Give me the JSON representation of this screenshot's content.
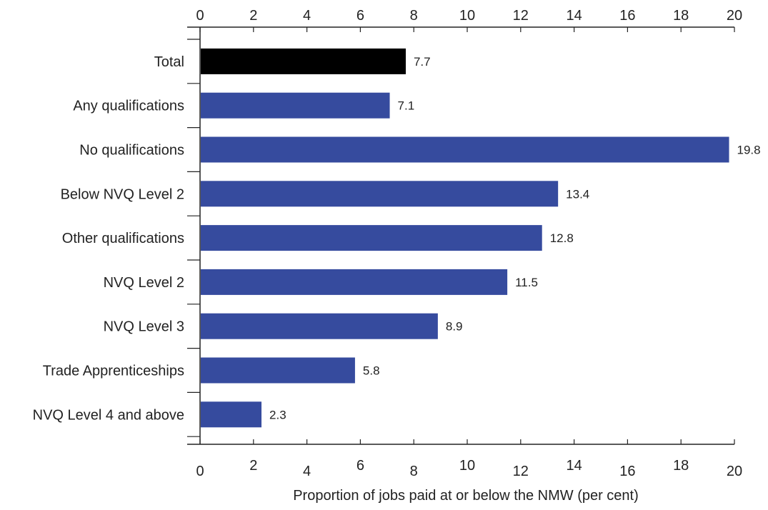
{
  "chart_data": {
    "type": "bar",
    "orientation": "horizontal",
    "categories": [
      "Total",
      "Any qualifications",
      "No qualifications",
      "Below NVQ Level 2",
      "Other qualifications",
      "NVQ Level 2",
      "NVQ Level 3",
      "Trade Apprenticeships",
      "NVQ Level 4 and above"
    ],
    "values": [
      7.7,
      7.1,
      19.8,
      13.4,
      12.8,
      11.5,
      8.9,
      5.8,
      2.3
    ],
    "value_labels": [
      "7.7",
      "7.1",
      "19.8",
      "13.4",
      "12.8",
      "11.5",
      "8.9",
      "5.8",
      "2.3"
    ],
    "bar_colors": [
      "#000000",
      "#364b9e",
      "#364b9e",
      "#364b9e",
      "#364b9e",
      "#364b9e",
      "#364b9e",
      "#364b9e",
      "#364b9e"
    ],
    "xlabel": "Proportion of jobs paid at or below the NMW (per cent)",
    "xlim": [
      0,
      20
    ],
    "xticks": [
      "0",
      "2",
      "4",
      "6",
      "8",
      "10",
      "12",
      "14",
      "16",
      "18",
      "20"
    ],
    "axis_position": "top and bottom",
    "grid": false
  }
}
